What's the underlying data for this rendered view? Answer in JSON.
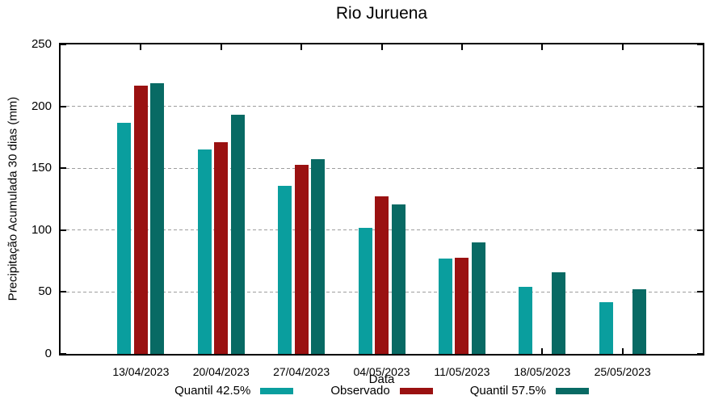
{
  "chart_data": {
    "type": "bar",
    "title": "Rio Juruena",
    "xlabel": "Data",
    "ylabel": "Precipitação Acumulada 30 dias (mm)",
    "ylim": [
      0,
      250
    ],
    "ytick_step": 50,
    "grid": "horizontal dashed gridlines at 50, 100, 150, 200",
    "legend_position": "bottom",
    "categories": [
      "13/04/2023",
      "20/04/2023",
      "27/04/2023",
      "04/05/2023",
      "11/05/2023",
      "18/05/2023",
      "25/05/2023"
    ],
    "series": [
      {
        "name": "Quantil 42.5%",
        "color": "#0a9e9e",
        "values": [
          187,
          165,
          136,
          102,
          77,
          54,
          42
        ]
      },
      {
        "name": "Observado",
        "color": "#9a1111",
        "values": [
          217,
          171,
          153,
          127,
          78,
          null,
          null
        ]
      },
      {
        "name": "Quantil 57.5%",
        "color": "#086a64",
        "values": [
          219,
          193,
          157,
          121,
          90,
          66,
          52
        ]
      }
    ]
  }
}
